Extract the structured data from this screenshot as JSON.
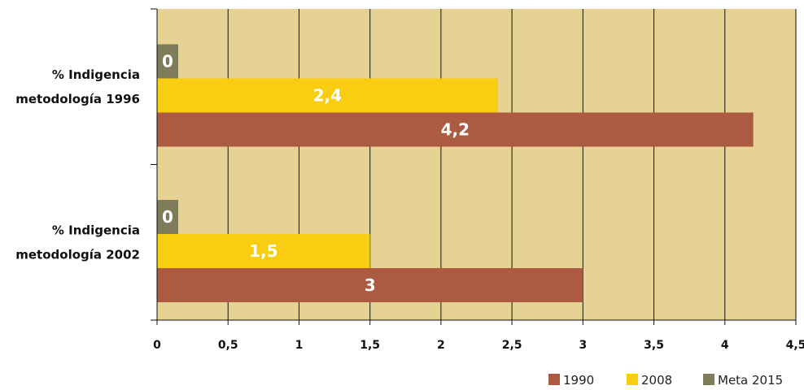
{
  "chart_data": {
    "type": "bar",
    "orientation": "horizontal",
    "title": "",
    "xlabel": "",
    "ylabel": "",
    "xlim": [
      0,
      4.5
    ],
    "x_ticks": [
      "0",
      "0,5",
      "1",
      "1,5",
      "2",
      "2,5",
      "3",
      "3,5",
      "4",
      "4,5"
    ],
    "grid": true,
    "legend_position": "bottom-right",
    "background": "#e6d293",
    "categories": [
      [
        "% Indigencia",
        "metodología 1996"
      ],
      [
        "% Indigencia",
        "metodología 2002"
      ]
    ],
    "series": [
      {
        "name": "1990",
        "color": "#ac5a41",
        "values": [
          4.2,
          3
        ],
        "labels": [
          "4,2",
          "3"
        ]
      },
      {
        "name": "2008",
        "color": "#f9ce10",
        "values": [
          2.4,
          1.5
        ],
        "labels": [
          "2,4",
          "1,5"
        ]
      },
      {
        "name": "Meta 2015",
        "color": "#7f7c5a",
        "values": [
          0,
          0
        ],
        "labels": [
          "0",
          "0"
        ]
      }
    ]
  }
}
